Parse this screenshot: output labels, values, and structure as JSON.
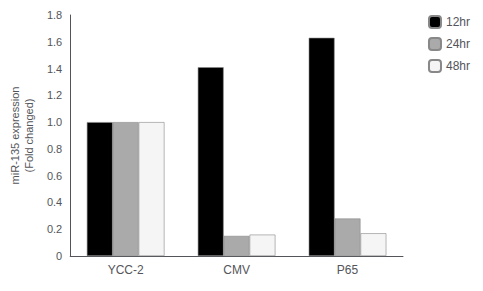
{
  "chart_data": {
    "type": "bar",
    "categories": [
      "YCC-2",
      "CMV",
      "P65"
    ],
    "series": [
      {
        "name": "12hr",
        "color": "#000000",
        "values": [
          1.0,
          1.41,
          1.63
        ]
      },
      {
        "name": "24hr",
        "color": "#aaaaaa",
        "values": [
          1.0,
          0.15,
          0.28
        ]
      },
      {
        "name": "48hr",
        "color": "#f5f5f5",
        "values": [
          1.0,
          0.16,
          0.17
        ]
      }
    ],
    "ylabel": "miR-135 expression\n(Fold changed)",
    "ylim": [
      0,
      1.8
    ],
    "yticks": [
      0,
      0.2,
      0.4,
      0.6,
      0.8,
      {
        "value": 1.0,
        "label": "1.0"
      },
      1.2,
      1.4,
      1.6,
      1.8
    ],
    "grid": false,
    "legend": "upper right"
  }
}
